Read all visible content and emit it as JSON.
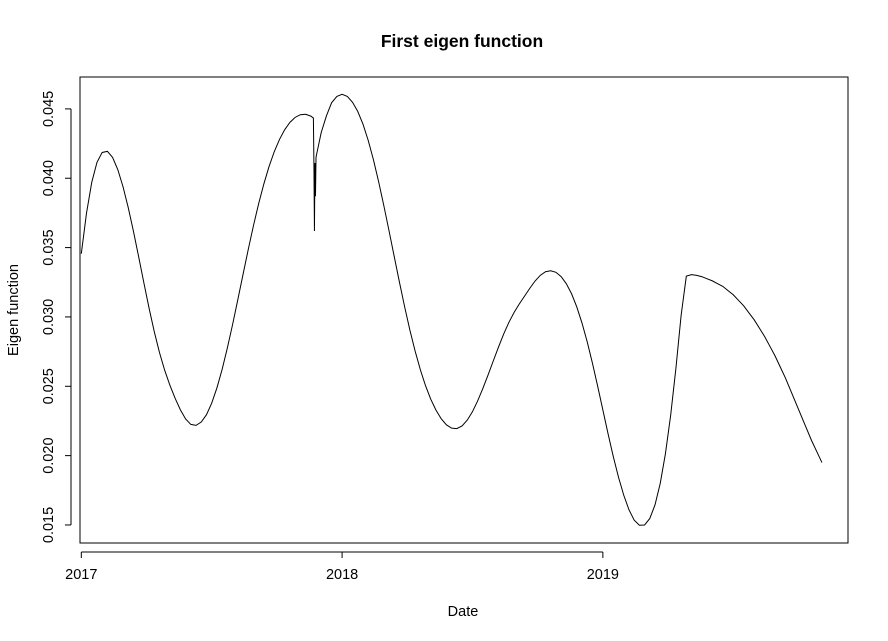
{
  "chart_data": {
    "type": "line",
    "title": "First eigen function",
    "xlabel": "Date",
    "ylabel": "Eigen function",
    "xlim": [
      2016.995,
      2019.94
    ],
    "ylim": [
      0.0137,
      0.0473
    ],
    "x_ticks": [
      {
        "value": 2017,
        "label": "2017"
      },
      {
        "value": 2018,
        "label": "2018"
      },
      {
        "value": 2019,
        "label": "2019"
      }
    ],
    "y_ticks": [
      {
        "value": 0.015,
        "label": "0.015"
      },
      {
        "value": 0.02,
        "label": "0.020"
      },
      {
        "value": 0.025,
        "label": "0.025"
      },
      {
        "value": 0.03,
        "label": "0.030"
      },
      {
        "value": 0.035,
        "label": "0.035"
      },
      {
        "value": 0.04,
        "label": "0.040"
      },
      {
        "value": 0.045,
        "label": "0.045"
      }
    ],
    "grid": false,
    "line_color": "#000000",
    "series": [
      {
        "x": [
          2017.0,
          2017.02,
          2017.04,
          2017.06,
          2017.08,
          2017.1,
          2017.12,
          2017.14,
          2017.16,
          2017.18,
          2017.2,
          2017.22,
          2017.24,
          2017.26,
          2017.28,
          2017.3,
          2017.32,
          2017.34,
          2017.36,
          2017.38,
          2017.4,
          2017.42,
          2017.44,
          2017.46,
          2017.48,
          2017.5,
          2017.52,
          2017.54,
          2017.56,
          2017.58,
          2017.6,
          2017.62,
          2017.64,
          2017.66,
          2017.68,
          2017.7,
          2017.72,
          2017.74,
          2017.76,
          2017.78,
          2017.8,
          2017.82,
          2017.84,
          2017.86,
          2017.88,
          2017.89,
          2017.892,
          2017.894,
          2017.896,
          2017.898,
          2017.9,
          2017.902,
          2017.92,
          2017.94,
          2017.96,
          2017.98,
          2018.0,
          2018.02,
          2018.04,
          2018.06,
          2018.08,
          2018.1,
          2018.12,
          2018.14,
          2018.16,
          2018.18,
          2018.2,
          2018.22,
          2018.24,
          2018.26,
          2018.28,
          2018.3,
          2018.32,
          2018.34,
          2018.36,
          2018.38,
          2018.4,
          2018.42,
          2018.44,
          2018.46,
          2018.48,
          2018.5,
          2018.52,
          2018.54,
          2018.56,
          2018.58,
          2018.6,
          2018.62,
          2018.64,
          2018.66,
          2018.68,
          2018.7,
          2018.72,
          2018.74,
          2018.76,
          2018.78,
          2018.8,
          2018.82,
          2018.84,
          2018.86,
          2018.88,
          2018.9,
          2018.92,
          2018.94,
          2018.96,
          2018.98,
          2019.0,
          2019.02,
          2019.04,
          2019.06,
          2019.08,
          2019.1,
          2019.12,
          2019.14,
          2019.16,
          2019.18,
          2019.2,
          2019.22,
          2019.24,
          2019.26,
          2019.28,
          2019.3,
          2019.32,
          2019.34,
          2019.36,
          2019.38,
          2019.4,
          2019.42,
          2019.44,
          2019.46,
          2019.48,
          2019.5,
          2019.52,
          2019.54,
          2019.56,
          2019.58,
          2019.6,
          2019.62,
          2019.64,
          2019.66,
          2019.68,
          2019.7,
          2019.72,
          2019.74,
          2019.76,
          2019.78,
          2019.8,
          2019.82,
          2019.84
        ],
        "y": [
          0.03456,
          0.03749,
          0.0397,
          0.04114,
          0.04186,
          0.04194,
          0.0415,
          0.04062,
          0.03939,
          0.03788,
          0.03617,
          0.03433,
          0.03245,
          0.03062,
          0.02892,
          0.02742,
          0.02614,
          0.02506,
          0.02412,
          0.0233,
          0.02264,
          0.02225,
          0.02218,
          0.02242,
          0.02295,
          0.02378,
          0.02488,
          0.02622,
          0.02776,
          0.02944,
          0.03123,
          0.03305,
          0.03485,
          0.03657,
          0.03816,
          0.03959,
          0.04085,
          0.04192,
          0.0428,
          0.0435,
          0.04403,
          0.04439,
          0.04458,
          0.04461,
          0.04448,
          0.04434,
          0.041,
          0.0362,
          0.0411,
          0.0387,
          0.0415,
          0.0417,
          0.0433,
          0.0445,
          0.04545,
          0.0459,
          0.04605,
          0.0459,
          0.04548,
          0.04482,
          0.04391,
          0.04274,
          0.04135,
          0.03976,
          0.03803,
          0.03621,
          0.03435,
          0.0325,
          0.03072,
          0.02905,
          0.02754,
          0.0262,
          0.02504,
          0.02407,
          0.02328,
          0.02266,
          0.02222,
          0.02198,
          0.02195,
          0.02214,
          0.02256,
          0.02317,
          0.02395,
          0.02485,
          0.02583,
          0.02684,
          0.02784,
          0.02878,
          0.02962,
          0.03034,
          0.03095,
          0.03151,
          0.03207,
          0.03259,
          0.033,
          0.03326,
          0.03333,
          0.03322,
          0.03291,
          0.03239,
          0.03167,
          0.03072,
          0.02956,
          0.0282,
          0.02667,
          0.02501,
          0.02329,
          0.02157,
          0.01993,
          0.01844,
          0.01715,
          0.0161,
          0.01535,
          0.01498,
          0.015,
          0.01547,
          0.01645,
          0.018,
          0.02015,
          0.02292,
          0.02628,
          0.0301,
          0.03294,
          0.03305,
          0.033,
          0.0329,
          0.03275,
          0.0326,
          0.0324,
          0.0322,
          0.0319,
          0.0316,
          0.0312,
          0.0308,
          0.0303,
          0.0298,
          0.0292,
          0.0286,
          0.0279,
          0.0272,
          0.0264,
          0.0256,
          0.0247,
          0.0238,
          0.0229,
          0.022,
          0.0211,
          0.0203,
          0.0195
        ]
      }
    ]
  }
}
